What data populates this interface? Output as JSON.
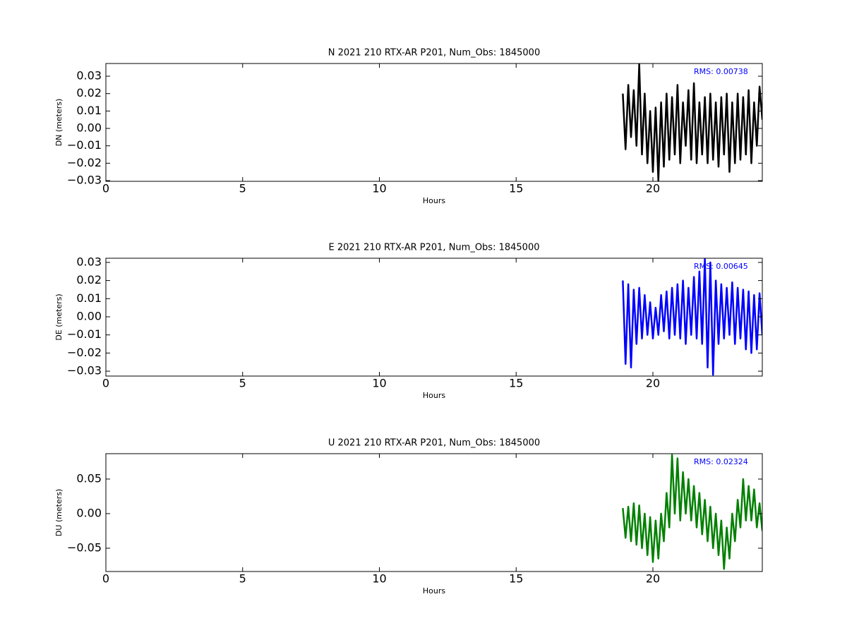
{
  "chart_data": [
    {
      "type": "line",
      "title": "N 2021 210 RTX-AR  P201, Num_Obs: 1845000",
      "ylabel": "DN (meters)",
      "xlabel": "Hours",
      "annotation": "RMS:  0.00738",
      "annotation_color": "#0000ff",
      "xlim": [
        0,
        24
      ],
      "xticks": [
        0,
        5,
        10,
        15,
        20
      ],
      "ylim": [
        -0.0304,
        0.0373
      ],
      "yticks": [
        {
          "value": -0.03,
          "label": "−0.03"
        },
        {
          "value": -0.02,
          "label": "−0.02"
        },
        {
          "value": -0.01,
          "label": "−0.01"
        },
        {
          "value": 0,
          "label": "0.00"
        },
        0.01,
        0.02,
        0.03
      ],
      "x": [
        18.9,
        19.0,
        19.1,
        19.2,
        19.3,
        19.4,
        19.5,
        19.6,
        19.7,
        19.8,
        19.9,
        20.0,
        20.1,
        20.2,
        20.3,
        20.4,
        20.5,
        20.6,
        20.7,
        20.8,
        20.9,
        21.0,
        21.1,
        21.2,
        21.3,
        21.4,
        21.5,
        21.6,
        21.7,
        21.8,
        21.9,
        22.0,
        22.1,
        22.2,
        22.3,
        22.4,
        22.5,
        22.6,
        22.7,
        22.8,
        22.9,
        23.0,
        23.1,
        23.2,
        23.3,
        23.4,
        23.5,
        23.6,
        23.7,
        23.8,
        23.9,
        24.0
      ],
      "series": [
        {
          "color": "#000000",
          "values": [
            0.02,
            -0.012,
            0.025,
            -0.005,
            0.022,
            -0.01,
            0.037,
            -0.015,
            0.02,
            -0.02,
            0.01,
            -0.025,
            0.012,
            -0.03,
            0.015,
            -0.022,
            0.02,
            -0.018,
            0.018,
            -0.015,
            0.025,
            -0.02,
            0.015,
            -0.01,
            0.022,
            -0.018,
            0.026,
            -0.02,
            0.015,
            -0.015,
            0.018,
            -0.02,
            0.02,
            -0.018,
            0.015,
            -0.022,
            0.018,
            -0.015,
            0.02,
            -0.025,
            0.015,
            -0.02,
            0.02,
            -0.018,
            0.018,
            -0.015,
            0.022,
            -0.02,
            0.015,
            -0.01,
            0.024,
            0.005
          ]
        }
      ]
    },
    {
      "type": "line",
      "title": "E 2021 210 RTX-AR  P201, Num_Obs: 1845000",
      "ylabel": "DE (meters)",
      "xlabel": "Hours",
      "annotation": "RMS:  0.00645",
      "annotation_color": "#0000ff",
      "xlim": [
        0,
        24
      ],
      "xticks": [
        0,
        5,
        10,
        15,
        20
      ],
      "ylim": [
        -0.0327,
        0.0323
      ],
      "yticks": [
        {
          "value": -0.03,
          "label": "−0.03"
        },
        {
          "value": -0.02,
          "label": "−0.02"
        },
        {
          "value": -0.01,
          "label": "−0.01"
        },
        {
          "value": 0,
          "label": "0.00"
        },
        0.01,
        0.02,
        0.03
      ],
      "x": [
        18.9,
        19.0,
        19.1,
        19.2,
        19.3,
        19.4,
        19.5,
        19.6,
        19.7,
        19.8,
        19.9,
        20.0,
        20.1,
        20.2,
        20.3,
        20.4,
        20.5,
        20.6,
        20.7,
        20.8,
        20.9,
        21.0,
        21.1,
        21.2,
        21.3,
        21.4,
        21.5,
        21.6,
        21.7,
        21.8,
        21.9,
        22.0,
        22.1,
        22.2,
        22.3,
        22.4,
        22.5,
        22.6,
        22.7,
        22.8,
        22.9,
        23.0,
        23.1,
        23.2,
        23.3,
        23.4,
        23.5,
        23.6,
        23.7,
        23.8,
        23.9,
        24.0
      ],
      "series": [
        {
          "color": "#0000ff",
          "values": [
            0.02,
            -0.026,
            0.018,
            -0.028,
            0.015,
            -0.015,
            0.016,
            -0.012,
            0.012,
            -0.01,
            0.008,
            -0.012,
            0.005,
            -0.01,
            0.012,
            -0.008,
            0.014,
            -0.012,
            0.016,
            -0.01,
            0.018,
            -0.012,
            0.02,
            -0.015,
            0.016,
            -0.01,
            0.022,
            -0.012,
            0.025,
            -0.015,
            0.032,
            -0.028,
            0.03,
            -0.032,
            0.02,
            -0.015,
            0.018,
            -0.012,
            0.016,
            -0.01,
            0.019,
            -0.015,
            0.016,
            -0.012,
            0.015,
            -0.018,
            0.014,
            -0.02,
            0.012,
            -0.018,
            0.013,
            -0.01
          ]
        }
      ]
    },
    {
      "type": "line",
      "title": "U 2021 210 RTX-AR  P201, Num_Obs: 1845000",
      "ylabel": "DU (meters)",
      "xlabel": "Hours",
      "annotation": "RMS:  0.02324",
      "annotation_color": "#0000ff",
      "xlim": [
        0,
        24
      ],
      "xticks": [
        0,
        5,
        10,
        15,
        20
      ],
      "ylim": [
        -0.0837,
        0.0867
      ],
      "yticks": [
        {
          "value": -0.05,
          "label": "−0.05"
        },
        {
          "value": 0,
          "label": "0.00"
        },
        0.05
      ],
      "x": [
        18.9,
        19.0,
        19.1,
        19.2,
        19.3,
        19.4,
        19.5,
        19.6,
        19.7,
        19.8,
        19.9,
        20.0,
        20.1,
        20.2,
        20.3,
        20.4,
        20.5,
        20.6,
        20.7,
        20.8,
        20.9,
        21.0,
        21.1,
        21.2,
        21.3,
        21.4,
        21.5,
        21.6,
        21.7,
        21.8,
        21.9,
        22.0,
        22.1,
        22.2,
        22.3,
        22.4,
        22.5,
        22.6,
        22.7,
        22.8,
        22.9,
        23.0,
        23.1,
        23.2,
        23.3,
        23.4,
        23.5,
        23.6,
        23.7,
        23.8,
        23.9,
        24.0
      ],
      "series": [
        {
          "color": "#008000",
          "values": [
            0.008,
            -0.035,
            0.01,
            -0.04,
            0.015,
            -0.045,
            0.012,
            -0.05,
            0.0,
            -0.06,
            -0.005,
            -0.07,
            -0.01,
            -0.065,
            0.0,
            -0.04,
            0.03,
            -0.02,
            0.085,
            0.0,
            0.08,
            -0.01,
            0.06,
            0.0,
            0.05,
            -0.01,
            0.04,
            -0.02,
            0.03,
            -0.03,
            0.02,
            -0.04,
            0.01,
            -0.05,
            0.0,
            -0.06,
            -0.01,
            -0.08,
            -0.02,
            -0.065,
            0.0,
            -0.04,
            0.02,
            -0.02,
            0.05,
            -0.01,
            0.04,
            -0.01,
            0.035,
            -0.02,
            0.015,
            -0.025
          ]
        }
      ]
    }
  ]
}
